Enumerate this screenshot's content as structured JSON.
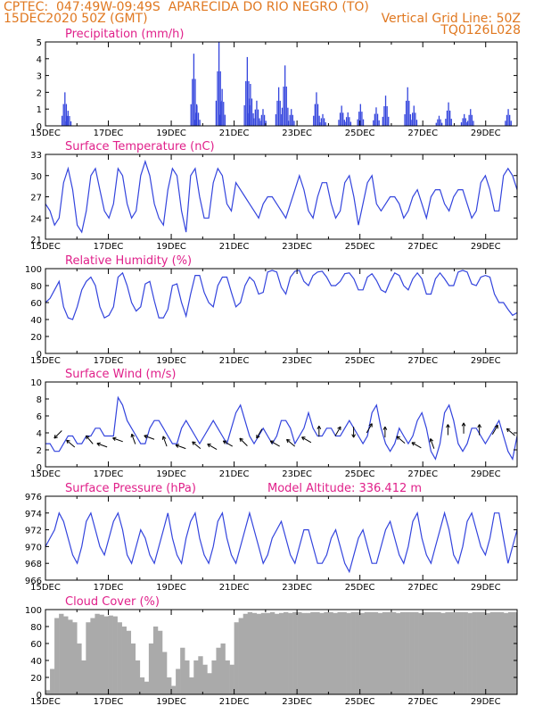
{
  "header": {
    "line1_left": "CPTEC:  047:49W-09:49S  APARECIDA DO RIO NEGRO (TO)",
    "line2_left": "15DEC2020 50Z (GMT)",
    "line2_right": "Vertical Grid Line: 50Z",
    "line3_right": "TQ0126L028"
  },
  "model_altitude": "Model Altitude: 336.412 m",
  "colors": {
    "line": "#3344dd",
    "bar": "#3344dd",
    "cloud": "#aaaaaa",
    "title": "#e0208a",
    "header": "#e07820"
  },
  "chart_data": [
    {
      "type": "bar",
      "title": "Precipitation (mm/h)",
      "x_labels": [
        "15DEC",
        "17DEC",
        "19DEC",
        "21DEC",
        "23DEC",
        "25DEC",
        "27DEC",
        "29DEC"
      ],
      "ylim": [
        0,
        5
      ],
      "yticks": [
        "0",
        "1",
        "2",
        "3",
        "4",
        "5"
      ],
      "peaks": [
        {
          "day": 15.6,
          "value": 2.0
        },
        {
          "day": 15.7,
          "value": 0.9
        },
        {
          "day": 19.7,
          "value": 4.3
        },
        {
          "day": 19.8,
          "value": 1.2
        },
        {
          "day": 20.5,
          "value": 5.0
        },
        {
          "day": 20.6,
          "value": 2.2
        },
        {
          "day": 21.4,
          "value": 4.1
        },
        {
          "day": 21.5,
          "value": 2.5
        },
        {
          "day": 21.7,
          "value": 1.5
        },
        {
          "day": 21.9,
          "value": 1.0
        },
        {
          "day": 22.4,
          "value": 2.3
        },
        {
          "day": 22.6,
          "value": 3.6
        },
        {
          "day": 22.8,
          "value": 1.0
        },
        {
          "day": 23.6,
          "value": 2.0
        },
        {
          "day": 23.8,
          "value": 0.7
        },
        {
          "day": 24.4,
          "value": 1.2
        },
        {
          "day": 24.6,
          "value": 0.8
        },
        {
          "day": 25.0,
          "value": 1.3
        },
        {
          "day": 25.5,
          "value": 1.1
        },
        {
          "day": 25.8,
          "value": 1.8
        },
        {
          "day": 26.5,
          "value": 2.3
        },
        {
          "day": 26.7,
          "value": 1.2
        },
        {
          "day": 27.5,
          "value": 0.6
        },
        {
          "day": 27.8,
          "value": 1.4
        },
        {
          "day": 28.3,
          "value": 0.7
        },
        {
          "day": 28.5,
          "value": 1.0
        },
        {
          "day": 29.7,
          "value": 1.0
        }
      ]
    },
    {
      "type": "line",
      "title": "Surface Temperature (nC)",
      "x_labels": [
        "15DEC",
        "17DEC",
        "19DEC",
        "21DEC",
        "23DEC",
        "25DEC",
        "27DEC",
        "29DEC"
      ],
      "ylim": [
        21,
        33
      ],
      "yticks": [
        "21",
        "24",
        "27",
        "30",
        "33"
      ],
      "values": [
        26,
        25,
        23,
        24,
        29,
        31,
        28,
        23,
        22,
        25,
        30,
        31,
        28,
        25,
        24,
        26,
        31,
        30,
        26,
        24,
        25,
        30,
        32,
        30,
        26,
        24,
        23,
        28,
        31,
        30,
        25,
        22,
        30,
        31,
        27,
        24,
        24,
        29,
        31,
        30,
        26,
        25,
        29,
        28,
        27,
        26,
        25,
        24,
        26,
        27,
        27,
        26,
        25,
        24,
        26,
        28,
        30,
        28,
        25,
        24,
        27,
        29,
        29,
        26,
        24,
        25,
        29,
        30,
        27,
        23,
        26,
        29,
        30,
        26,
        25,
        26,
        27,
        27,
        26,
        24,
        25,
        27,
        28,
        26,
        24,
        27,
        28,
        28,
        26,
        25,
        27,
        28,
        28,
        26,
        24,
        25,
        29,
        30,
        28,
        25,
        25,
        30,
        31,
        30,
        28
      ]
    },
    {
      "type": "line",
      "title": "Relative Humidity (%)",
      "x_labels": [
        "15DEC",
        "17DEC",
        "19DEC",
        "21DEC",
        "23DEC",
        "25DEC",
        "27DEC",
        "29DEC"
      ],
      "ylim": [
        0,
        100
      ],
      "yticks": [
        "0",
        "20",
        "40",
        "60",
        "80",
        "100"
      ],
      "values": [
        60,
        65,
        75,
        85,
        55,
        42,
        40,
        55,
        75,
        85,
        90,
        80,
        55,
        42,
        45,
        55,
        90,
        95,
        80,
        60,
        50,
        55,
        82,
        85,
        62,
        42,
        42,
        52,
        80,
        82,
        60,
        44,
        70,
        92,
        92,
        72,
        60,
        55,
        80,
        90,
        90,
        72,
        55,
        60,
        80,
        90,
        85,
        70,
        72,
        96,
        98,
        96,
        78,
        70,
        90,
        97,
        98,
        85,
        80,
        92,
        96,
        97,
        90,
        80,
        80,
        85,
        94,
        95,
        88,
        75,
        75,
        90,
        94,
        86,
        75,
        72,
        85,
        95,
        92,
        80,
        75,
        88,
        95,
        88,
        70,
        70,
        88,
        95,
        88,
        80,
        80,
        96,
        98,
        96,
        82,
        80,
        90,
        92,
        90,
        70,
        60,
        60,
        52,
        45,
        48
      ]
    },
    {
      "type": "line",
      "title": "Surface Wind (m/s)",
      "x_labels": [
        "15DEC",
        "17DEC",
        "19DEC",
        "21DEC",
        "23DEC",
        "25DEC",
        "27DEC",
        "29DEC"
      ],
      "ylim": [
        0,
        11
      ],
      "yticks": [
        "0",
        "2",
        "4",
        "6",
        "8",
        "10"
      ],
      "values": [
        3,
        3,
        2,
        2,
        3,
        4,
        4,
        3,
        3,
        4,
        4,
        5,
        5,
        4,
        4,
        4,
        9,
        8,
        6,
        5,
        4,
        3,
        3,
        5,
        6,
        6,
        5,
        4,
        3,
        3,
        5,
        6,
        5,
        4,
        3,
        4,
        5,
        6,
        5,
        4,
        3,
        5,
        7,
        8,
        6,
        4,
        3,
        4,
        5,
        4,
        3,
        4,
        6,
        6,
        5,
        3,
        4,
        5,
        7,
        5,
        4,
        4,
        5,
        5,
        4,
        4,
        5,
        6,
        5,
        4,
        3,
        4,
        7,
        8,
        5,
        3,
        2,
        3,
        5,
        4,
        3,
        4,
        6,
        7,
        5,
        2,
        1,
        3,
        7,
        8,
        6,
        3,
        2,
        3,
        5,
        5,
        4,
        3,
        4,
        5,
        6,
        4,
        2,
        1,
        4
      ]
    },
    {
      "type": "line",
      "title": "Surface Pressure (hPa)",
      "x_labels": [
        "15DEC",
        "17DEC",
        "19DEC",
        "21DEC",
        "23DEC",
        "25DEC",
        "27DEC",
        "29DEC"
      ],
      "ylim": [
        966,
        976
      ],
      "yticks": [
        "966",
        "968",
        "970",
        "972",
        "974",
        "976"
      ],
      "values": [
        970,
        971,
        972,
        974,
        973,
        971,
        969,
        968,
        970,
        973,
        974,
        972,
        970,
        969,
        971,
        973,
        974,
        972,
        969,
        968,
        970,
        972,
        971,
        969,
        968,
        970,
        972,
        974,
        971,
        969,
        968,
        971,
        973,
        974,
        971,
        969,
        968,
        970,
        973,
        974,
        971,
        969,
        968,
        970,
        972,
        974,
        972,
        970,
        968,
        969,
        971,
        972,
        973,
        971,
        969,
        968,
        970,
        972,
        972,
        970,
        968,
        968,
        969,
        971,
        972,
        970,
        968,
        967,
        969,
        971,
        972,
        970,
        968,
        968,
        970,
        972,
        973,
        971,
        969,
        968,
        970,
        973,
        974,
        971,
        969,
        968,
        970,
        972,
        974,
        972,
        969,
        968,
        970,
        973,
        974,
        972,
        970,
        969,
        971,
        974,
        974,
        971,
        968,
        970,
        972
      ]
    },
    {
      "type": "area",
      "title": "Cloud Cover (%)",
      "x_labels": [
        "15DEC",
        "17DEC",
        "19DEC",
        "21DEC",
        "23DEC",
        "25DEC",
        "27DEC",
        "29DEC"
      ],
      "ylim": [
        0,
        100
      ],
      "yticks": [
        "0",
        "20",
        "40",
        "60",
        "80",
        "100"
      ],
      "values": [
        5,
        30,
        90,
        95,
        92,
        88,
        85,
        60,
        40,
        85,
        90,
        95,
        94,
        92,
        93,
        92,
        85,
        80,
        75,
        60,
        40,
        20,
        15,
        60,
        80,
        75,
        50,
        20,
        10,
        30,
        55,
        40,
        20,
        40,
        45,
        35,
        25,
        40,
        55,
        60,
        40,
        35,
        85,
        90,
        95,
        97,
        96,
        95,
        96,
        96,
        97,
        95,
        96,
        97,
        96,
        97,
        97,
        96,
        96,
        97,
        97,
        96,
        97,
        97,
        96,
        97,
        97,
        96,
        97,
        97,
        96,
        97,
        97,
        97,
        96,
        97,
        97,
        97,
        96,
        97,
        97,
        97,
        97,
        96,
        97,
        97,
        97,
        97,
        96,
        97,
        97,
        97,
        97,
        97,
        96,
        97,
        97,
        97,
        96,
        97,
        97,
        97,
        96,
        97,
        97
      ]
    }
  ],
  "wind_arrows": [
    {
      "day": 15.4,
      "dir": 135,
      "y": 4.2
    },
    {
      "day": 15.8,
      "dir": 220,
      "y": 3.0
    },
    {
      "day": 16.4,
      "dir": 230,
      "y": 3.5
    },
    {
      "day": 16.8,
      "dir": 200,
      "y": 2.8
    },
    {
      "day": 17.3,
      "dir": 200,
      "y": 3.5
    },
    {
      "day": 17.8,
      "dir": 250,
      "y": 3.6
    },
    {
      "day": 18.3,
      "dir": 200,
      "y": 3.8
    },
    {
      "day": 18.8,
      "dir": 250,
      "y": 3.3
    },
    {
      "day": 19.3,
      "dir": 200,
      "y": 2.6
    },
    {
      "day": 19.8,
      "dir": 220,
      "y": 2.8
    },
    {
      "day": 20.3,
      "dir": 210,
      "y": 2.6
    },
    {
      "day": 20.8,
      "dir": 210,
      "y": 3.0
    },
    {
      "day": 21.3,
      "dir": 225,
      "y": 3.2
    },
    {
      "day": 21.8,
      "dir": 120,
      "y": 4.3
    },
    {
      "day": 22.3,
      "dir": 210,
      "y": 3.0
    },
    {
      "day": 22.8,
      "dir": 220,
      "y": 3.1
    },
    {
      "day": 23.3,
      "dir": 210,
      "y": 3.5
    },
    {
      "day": 23.7,
      "dir": 270,
      "y": 4.6
    },
    {
      "day": 24.3,
      "dir": 300,
      "y": 4.6
    },
    {
      "day": 24.8,
      "dir": 90,
      "y": 4.5
    },
    {
      "day": 25.3,
      "dir": 300,
      "y": 5.0
    },
    {
      "day": 25.8,
      "dir": 270,
      "y": 4.5
    },
    {
      "day": 26.3,
      "dir": 220,
      "y": 3.5
    },
    {
      "day": 26.8,
      "dir": 210,
      "y": 2.8
    },
    {
      "day": 27.3,
      "dir": 250,
      "y": 3.0
    },
    {
      "day": 27.8,
      "dir": 270,
      "y": 4.8
    },
    {
      "day": 28.3,
      "dir": 270,
      "y": 5.0
    },
    {
      "day": 28.8,
      "dir": 270,
      "y": 4.8
    },
    {
      "day": 29.3,
      "dir": 300,
      "y": 4.8
    },
    {
      "day": 29.8,
      "dir": 220,
      "y": 4.5
    }
  ]
}
